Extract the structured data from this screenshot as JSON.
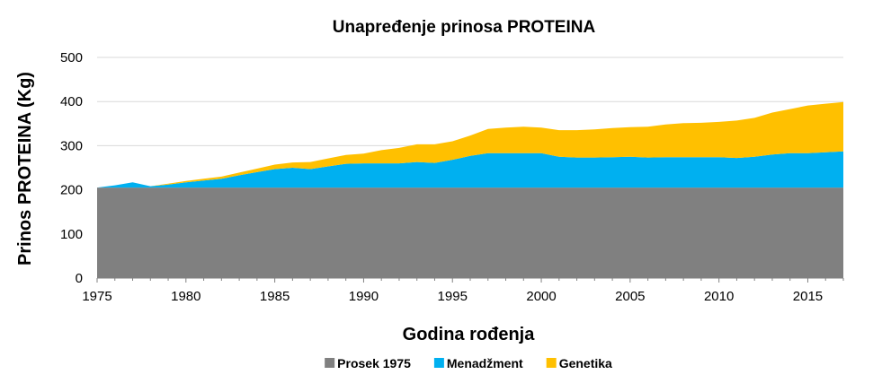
{
  "chart_data": {
    "type": "area",
    "stacked": true,
    "title": "Unapređenje prinosa PROTEINA",
    "xlabel": "Godina rođenja",
    "ylabel": "Prinos PROTEINA (Kg)",
    "ylim": [
      0,
      500
    ],
    "yticks": [
      0,
      100,
      200,
      300,
      400,
      500
    ],
    "xlim": [
      1975,
      2017
    ],
    "xticks": [
      1975,
      1980,
      1985,
      1990,
      1995,
      2000,
      2005,
      2010,
      2015
    ],
    "grid": true,
    "legend_position": "bottom",
    "x": [
      1975,
      1976,
      1977,
      1978,
      1979,
      1980,
      1981,
      1982,
      1983,
      1984,
      1985,
      1986,
      1987,
      1988,
      1989,
      1990,
      1991,
      1992,
      1993,
      1994,
      1995,
      1996,
      1997,
      1998,
      1999,
      2000,
      2001,
      2002,
      2003,
      2004,
      2005,
      2006,
      2007,
      2008,
      2009,
      2010,
      2011,
      2012,
      2013,
      2014,
      2015,
      2016,
      2017
    ],
    "series": [
      {
        "name": "Prosek 1975",
        "color": "#808080",
        "values": [
          205,
          205,
          205,
          205,
          205,
          205,
          205,
          205,
          205,
          205,
          205,
          205,
          205,
          205,
          205,
          205,
          205,
          205,
          205,
          205,
          205,
          205,
          205,
          205,
          205,
          205,
          205,
          205,
          205,
          205,
          205,
          205,
          205,
          205,
          205,
          205,
          205,
          205,
          205,
          205,
          205,
          205,
          205
        ]
      },
      {
        "name": "Menadžment",
        "color": "#00B0F0",
        "values": [
          0,
          5,
          12,
          3,
          7,
          12,
          16,
          20,
          28,
          35,
          42,
          45,
          42,
          48,
          54,
          55,
          55,
          55,
          58,
          56,
          63,
          72,
          78,
          78,
          78,
          78,
          70,
          68,
          68,
          69,
          70,
          68,
          69,
          69,
          69,
          69,
          67,
          70,
          75,
          78,
          78,
          80,
          82
        ]
      },
      {
        "name": "Genetika",
        "color": "#FFC000",
        "values": [
          0,
          0,
          0,
          0,
          2,
          3,
          4,
          5,
          6,
          8,
          10,
          12,
          16,
          18,
          20,
          22,
          30,
          35,
          40,
          42,
          42,
          46,
          55,
          58,
          60,
          58,
          60,
          62,
          64,
          66,
          67,
          70,
          74,
          77,
          78,
          80,
          85,
          88,
          95,
          100,
          108,
          110,
          112
        ]
      }
    ]
  }
}
